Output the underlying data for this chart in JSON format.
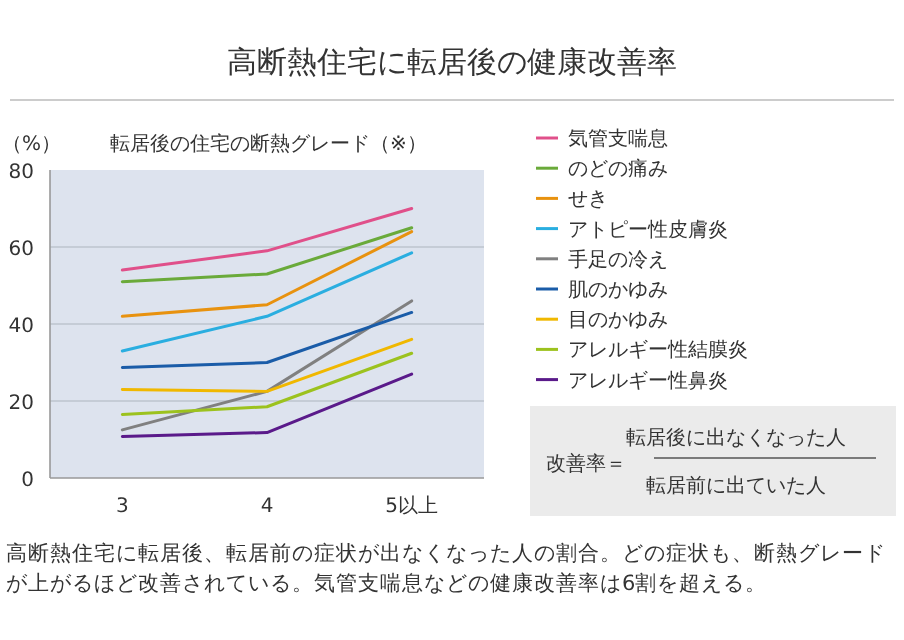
{
  "chart_data": {
    "type": "line",
    "title": "高断熱住宅に転居後の健康改善率",
    "xlabel": "転居後の住宅の断熱グレード（※）",
    "ylabel": "（%）",
    "categories": [
      "3",
      "4",
      "5以上"
    ],
    "ylim": [
      0,
      80
    ],
    "yticks": [
      0,
      20,
      40,
      60,
      80
    ],
    "grid": "y",
    "legend": "right",
    "marker": "none",
    "line_style": "solid",
    "series": [
      {
        "name": "気管支喘息",
        "color": "#e0508a",
        "values": [
          54,
          59,
          70
        ]
      },
      {
        "name": "のどの痛み",
        "color": "#6aaa3a",
        "values": [
          51,
          53,
          65
        ]
      },
      {
        "name": "せき",
        "color": "#e8920f",
        "values": [
          42,
          45,
          64
        ]
      },
      {
        "name": "アトピー性皮膚炎",
        "color": "#2aaee0",
        "values": [
          33,
          42,
          58.5
        ]
      },
      {
        "name": "手足の冷え",
        "color": "#808080",
        "values": [
          12.5,
          22.5,
          46
        ]
      },
      {
        "name": "肌のかゆみ",
        "color": "#1a5ca8",
        "values": [
          28.7,
          30,
          43
        ]
      },
      {
        "name": "目のかゆみ",
        "color": "#f0b800",
        "values": [
          23,
          22.5,
          36
        ]
      },
      {
        "name": "アレルギー性結膜炎",
        "color": "#9cc21e",
        "values": [
          16.5,
          18.5,
          32.4
        ]
      },
      {
        "name": "アレルギー性鼻炎",
        "color": "#5a1a8a",
        "values": [
          10.8,
          11.8,
          27
        ]
      }
    ],
    "annotations": [
      "改善率＝",
      "転居後に出なくなった人",
      "転居前に出ていた人",
      "高断熱住宅に転居後、転居前の症状が出なくなった人の割合。どの症状も、断熱グレードが上がるほど改善されている。気管支喘息などの健康改善率は6割を超える。"
    ]
  }
}
